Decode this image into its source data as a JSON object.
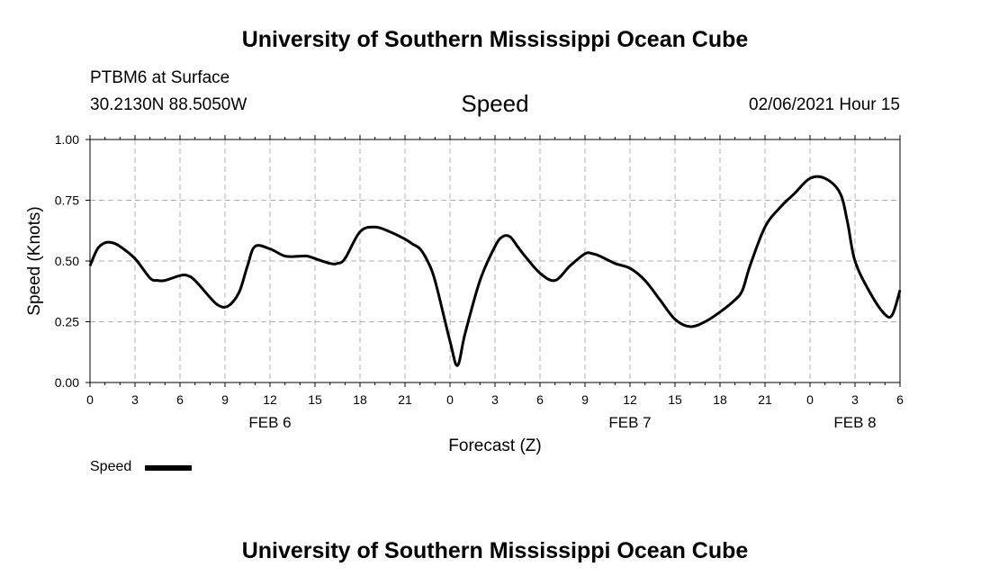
{
  "header": {
    "title": "University of Southern Mississippi Ocean Cube",
    "station": "PTBM6 at Surface",
    "coords": "30.2130N 88.5050W",
    "variable": "Speed",
    "datetime": "02/06/2021 Hour 15"
  },
  "footer": {
    "title": "University of Southern Mississippi Ocean Cube"
  },
  "legend": {
    "label": "Speed"
  },
  "chart_data": {
    "type": "line",
    "title": "Speed",
    "xlabel": "Forecast (Z)",
    "ylabel": "Speed (Knots)",
    "xlim": [
      0,
      54
    ],
    "ylim": [
      0,
      1
    ],
    "y_ticks": [
      "0.00",
      "0.25",
      "0.50",
      "0.75",
      "1.00"
    ],
    "x_tick_labels": [
      "0",
      "3",
      "6",
      "9",
      "12",
      "15",
      "18",
      "21",
      "0",
      "3",
      "6",
      "9",
      "12",
      "15",
      "18",
      "21",
      "0",
      "3",
      "6"
    ],
    "date_labels": [
      {
        "hour": 12,
        "label": "FEB 6"
      },
      {
        "hour": 36,
        "label": "FEB 7"
      },
      {
        "hour": 51,
        "label": "FEB 8"
      }
    ],
    "grid": true,
    "legend_position": "bottom-left",
    "series": [
      {
        "name": "Speed",
        "color": "#000000",
        "x": [
          0,
          0.5,
          1,
          1.5,
          2,
          3,
          4,
          4.5,
          5,
          6,
          6.5,
          7,
          8,
          8.5,
          9,
          9.5,
          10,
          10.5,
          11,
          12,
          13,
          14,
          14.5,
          15,
          16,
          16.5,
          17,
          18,
          19,
          20,
          21,
          21.5,
          22,
          22.5,
          23,
          24,
          24.5,
          25,
          26,
          27,
          27.5,
          28,
          28.5,
          29,
          30,
          31,
          32,
          33,
          33.5,
          34,
          35,
          36,
          37,
          38,
          39,
          40,
          41,
          42,
          43,
          43.5,
          44,
          45,
          46,
          47,
          48,
          49,
          50,
          50.5,
          51,
          52,
          53,
          53.5,
          54
        ],
        "y": [
          0.48,
          0.55,
          0.575,
          0.575,
          0.56,
          0.51,
          0.43,
          0.42,
          0.42,
          0.44,
          0.44,
          0.42,
          0.35,
          0.32,
          0.31,
          0.33,
          0.38,
          0.48,
          0.56,
          0.55,
          0.52,
          0.52,
          0.52,
          0.51,
          0.49,
          0.49,
          0.51,
          0.62,
          0.64,
          0.62,
          0.59,
          0.57,
          0.55,
          0.5,
          0.42,
          0.17,
          0.07,
          0.2,
          0.42,
          0.56,
          0.6,
          0.6,
          0.56,
          0.52,
          0.45,
          0.42,
          0.48,
          0.53,
          0.53,
          0.52,
          0.49,
          0.47,
          0.42,
          0.34,
          0.26,
          0.23,
          0.25,
          0.29,
          0.34,
          0.38,
          0.48,
          0.64,
          0.72,
          0.78,
          0.84,
          0.84,
          0.78,
          0.66,
          0.5,
          0.37,
          0.28,
          0.28,
          0.38
        ]
      }
    ]
  }
}
